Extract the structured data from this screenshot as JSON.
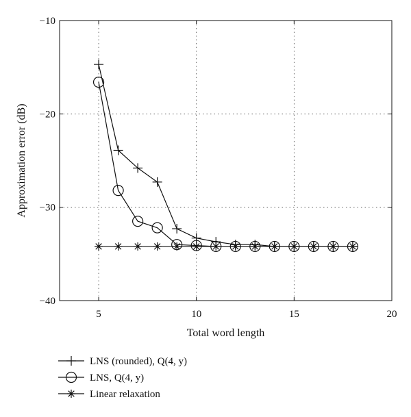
{
  "chart_data": {
    "type": "line",
    "title": "",
    "xlabel": "Total word length",
    "ylabel": "Approximation error (dB)",
    "xlim": [
      3,
      20
    ],
    "ylim": [
      -40,
      -10
    ],
    "xticks": [
      5,
      10,
      15,
      20
    ],
    "yticks": [
      -10,
      -20,
      -30,
      -40
    ],
    "grid": true,
    "legend_position": "bottom-left, below plot",
    "series": [
      {
        "name": "LNS (rounded), Q(4, y)",
        "marker": "plus",
        "color": "#111111",
        "x": [
          5,
          6,
          7,
          8,
          9,
          10,
          11,
          12,
          13,
          14,
          15,
          16,
          17,
          18
        ],
        "y": [
          -14.7,
          -23.9,
          -25.8,
          -27.3,
          -32.3,
          -33.3,
          -33.7,
          -34.0,
          -34.0,
          -34.2,
          -34.2,
          -34.2,
          -34.2,
          -34.2
        ]
      },
      {
        "name": "LNS, Q(4, y)",
        "marker": "circle",
        "color": "#111111",
        "x": [
          5,
          6,
          7,
          8,
          9,
          10,
          11,
          12,
          13,
          14,
          15,
          16,
          17,
          18
        ],
        "y": [
          -16.6,
          -28.2,
          -31.5,
          -32.2,
          -34.0,
          -34.1,
          -34.2,
          -34.2,
          -34.2,
          -34.2,
          -34.2,
          -34.2,
          -34.2,
          -34.2
        ]
      },
      {
        "name": "Linear relaxation",
        "marker": "asterisk",
        "color": "#111111",
        "x": [
          5,
          6,
          7,
          8,
          9,
          10,
          11,
          12,
          13,
          14,
          15,
          16,
          17,
          18
        ],
        "y": [
          -34.2,
          -34.2,
          -34.2,
          -34.2,
          -34.2,
          -34.2,
          -34.2,
          -34.2,
          -34.2,
          -34.2,
          -34.2,
          -34.2,
          -34.2,
          -34.2
        ]
      }
    ]
  }
}
